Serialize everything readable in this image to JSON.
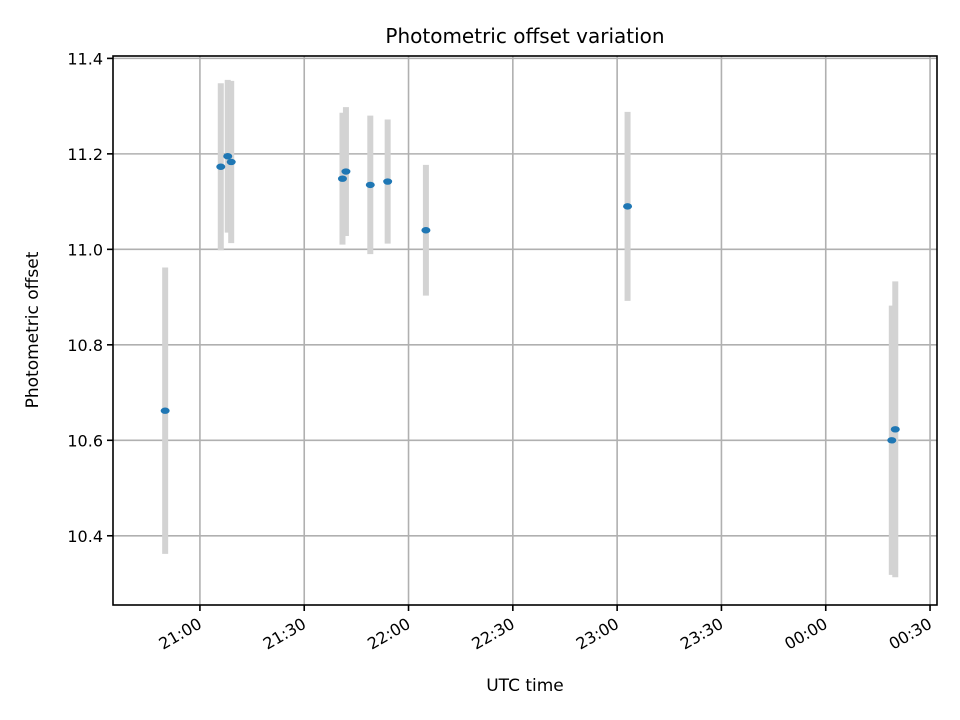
{
  "chart_data": {
    "type": "scatter",
    "title": "Photometric offset variation",
    "xlabel": "UTC time",
    "ylabel": "Photometric offset",
    "x_axis": "time",
    "xlim": [
      "20:35",
      "00:32"
    ],
    "ylim": [
      10.255,
      11.405
    ],
    "xticks": [
      "21:00",
      "21:30",
      "22:00",
      "22:30",
      "23:00",
      "23:30",
      "00:00",
      "00:30"
    ],
    "yticks": [
      10.4,
      10.6,
      10.8,
      11.0,
      11.2,
      11.4
    ],
    "grid": true,
    "marker_color": "#1f77b4",
    "errorbar_color": "#d3d3d3",
    "points": [
      {
        "x": "20:50",
        "y": 10.662,
        "yerr": 0.3
      },
      {
        "x": "21:06",
        "y": 11.173,
        "yerr": 0.175
      },
      {
        "x": "21:08",
        "y": 11.195,
        "yerr": 0.16
      },
      {
        "x": "21:09",
        "y": 11.183,
        "yerr": 0.17
      },
      {
        "x": "21:41",
        "y": 11.148,
        "yerr": 0.138
      },
      {
        "x": "21:42",
        "y": 11.163,
        "yerr": 0.135
      },
      {
        "x": "21:49",
        "y": 11.135,
        "yerr": 0.145
      },
      {
        "x": "21:54",
        "y": 11.142,
        "yerr": 0.13
      },
      {
        "x": "22:05",
        "y": 11.04,
        "yerr": 0.137
      },
      {
        "x": "23:03",
        "y": 11.09,
        "yerr": 0.198
      },
      {
        "x": "00:19",
        "y": 10.6,
        "yerr": 0.282
      },
      {
        "x": "00:20",
        "y": 10.623,
        "yerr": 0.31
      }
    ]
  }
}
